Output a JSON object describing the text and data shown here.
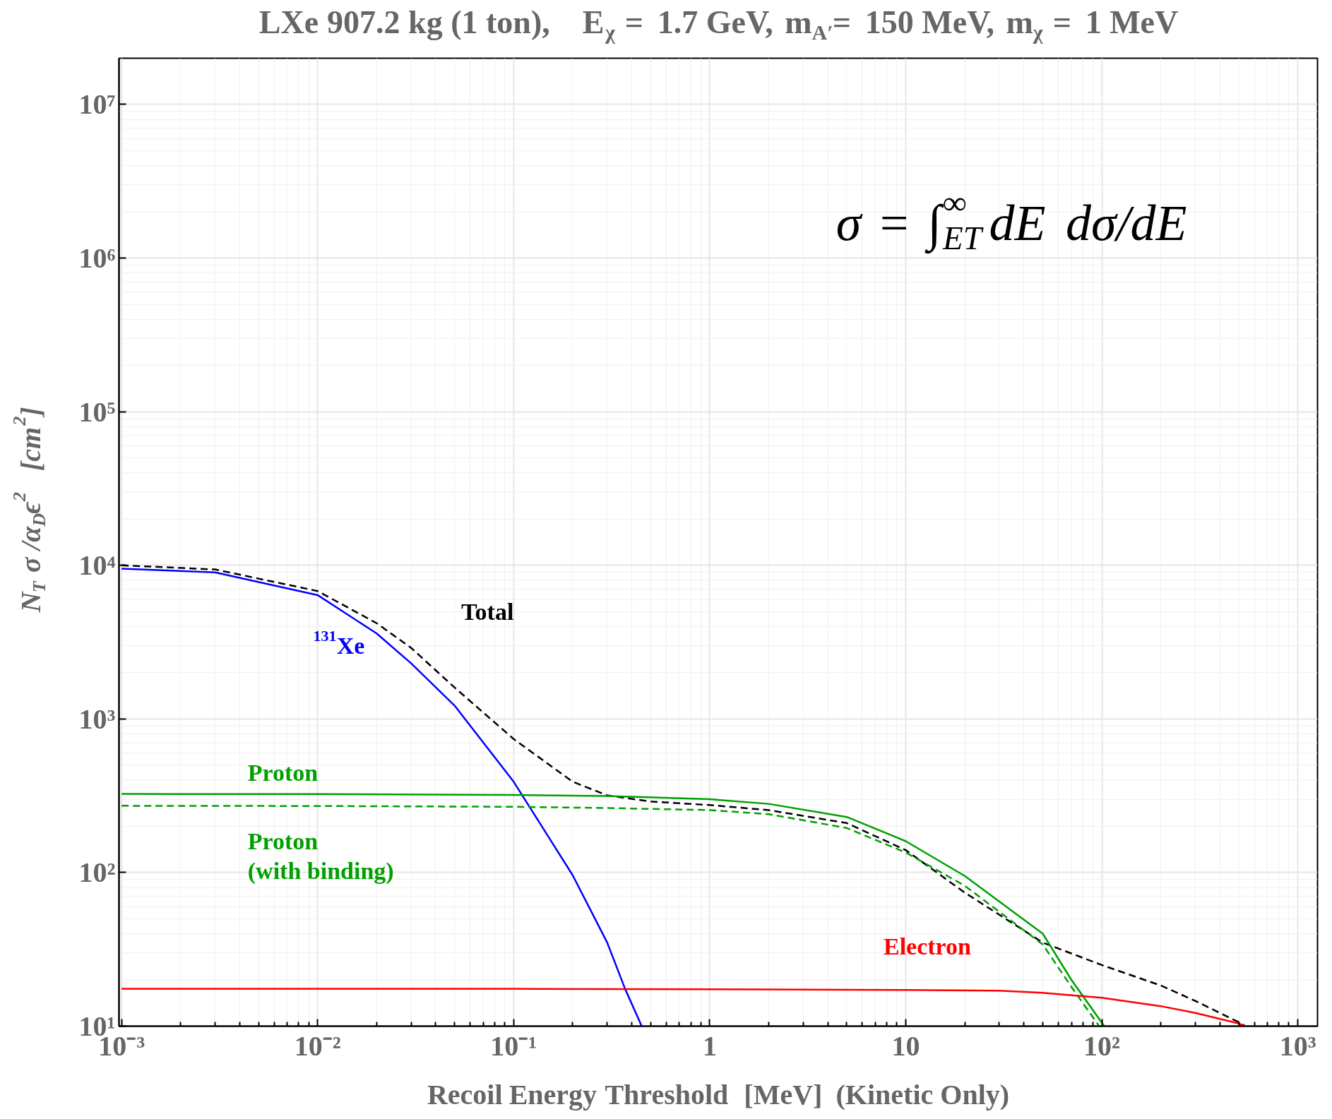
{
  "chart_data": {
    "type": "line",
    "title": "LXe 907.2 kg (1 ton),    E$_{χ}$ = 1.7 GeV, m$_{A′}$= 150 MeV, m$_{χ}$ = 1 MeV",
    "xlabel": "Recoil Energy Threshold  [MeV]  (Kinetic Only)",
    "ylabel": "N$_{T}$ σ /α$_{D}$ϵ$^{2}$   [cm$^{2}$]",
    "annotations": [
      "σ = ∫$_{ET}$$^{∞}$dE dσ/dE"
    ],
    "log": "xy",
    "grid": true,
    "marker": "none",
    "xlim": [
      0.00097,
      1260
    ],
    "ylim": [
      10,
      20000000
    ],
    "xticks": [
      {
        "value": 0.001,
        "label": "10⁻³"
      },
      {
        "value": 0.01,
        "label": "10⁻²"
      },
      {
        "value": 0.1,
        "label": "10⁻¹"
      },
      1,
      10,
      {
        "value": 100,
        "label": "10²"
      },
      {
        "value": 1000,
        "label": "10³"
      }
    ],
    "yticks": [
      {
        "value": 10,
        "label": "10¹"
      },
      {
        "value": 100,
        "label": "10²"
      },
      {
        "value": 1000,
        "label": "10³"
      },
      {
        "value": 10000,
        "label": "10⁴"
      },
      {
        "value": 100000,
        "label": "10⁵"
      },
      {
        "value": 1000000,
        "label": "10⁶"
      },
      {
        "value": 10000000,
        "label": "10⁷"
      }
    ],
    "series": [
      {
        "name": "$^{131}$Xe",
        "color": "#0000ff",
        "line_style": "solid",
        "x": [
          0.001,
          0.003,
          0.01,
          0.02,
          0.03,
          0.05,
          0.1,
          0.2,
          0.3,
          0.37,
          0.45
        ],
        "values": [
          9500,
          9000,
          6400,
          3600,
          2300,
          1220,
          390,
          96,
          35,
          17.5,
          10
        ]
      },
      {
        "name": "Total",
        "color": "#000000",
        "line_style": "dashed",
        "x": [
          0.001,
          0.003,
          0.01,
          0.02,
          0.03,
          0.05,
          0.1,
          0.2,
          0.3,
          0.5,
          1,
          2,
          5,
          10,
          20,
          50,
          100,
          200,
          300,
          500,
          540
        ],
        "values": [
          10000,
          9400,
          6800,
          4200,
          2900,
          1600,
          740,
          390,
          318,
          290,
          275,
          255,
          210,
          140,
          74,
          35,
          25,
          18.4,
          14.6,
          10.6,
          10
        ]
      },
      {
        "name": "Proton",
        "color": "#00a000",
        "line_style": "solid",
        "x": [
          0.001,
          0.01,
          0.1,
          0.3,
          1,
          2,
          5,
          10,
          20,
          50,
          70,
          103
        ],
        "values": [
          325,
          324,
          320,
          315,
          300,
          280,
          230,
          160,
          95,
          40,
          20,
          10
        ]
      },
      {
        "name": "Proton\n(with binding)",
        "color": "#00a000",
        "line_style": "dashed",
        "x": [
          0.001,
          0.01,
          0.1,
          0.3,
          1,
          2,
          5,
          10,
          20,
          50,
          70,
          97
        ],
        "values": [
          272,
          271,
          268,
          263,
          255,
          240,
          195,
          135,
          82,
          34,
          18,
          10
        ]
      },
      {
        "name": "Electron",
        "color": "#ff0000",
        "line_style": "solid",
        "x": [
          0.001,
          0.1,
          1,
          10,
          30,
          50,
          100,
          200,
          300,
          500,
          540
        ],
        "values": [
          17.5,
          17.5,
          17.4,
          17.2,
          17.0,
          16.5,
          15.3,
          13.5,
          12.2,
          10.4,
          10
        ]
      }
    ]
  }
}
